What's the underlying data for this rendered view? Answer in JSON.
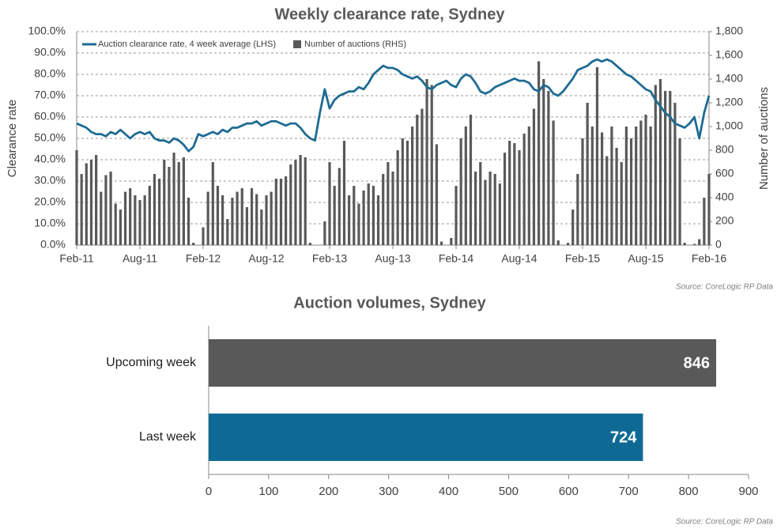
{
  "chart_data": [
    {
      "type": "combo",
      "title": "Weekly clearance rate, Sydney",
      "y_label": "Clearance rate",
      "y2_label": "Number of auctions",
      "source": "Source: CoreLogic  RP Data",
      "grid": true,
      "legend": "top",
      "categories": [
        "Feb-11",
        null,
        null,
        null,
        null,
        null,
        null,
        null,
        null,
        null,
        null,
        null,
        null,
        "Aug-11",
        null,
        null,
        null,
        null,
        null,
        null,
        null,
        null,
        null,
        null,
        null,
        null,
        "Feb-12",
        null,
        null,
        null,
        null,
        null,
        null,
        null,
        null,
        null,
        null,
        null,
        null,
        "Aug-12",
        null,
        null,
        null,
        null,
        null,
        null,
        null,
        null,
        null,
        null,
        null,
        null,
        "Feb-13",
        null,
        null,
        null,
        null,
        null,
        null,
        null,
        null,
        null,
        null,
        null,
        null,
        "Aug-13",
        null,
        null,
        null,
        null,
        null,
        null,
        null,
        null,
        null,
        null,
        null,
        null,
        "Feb-14",
        null,
        null,
        null,
        null,
        null,
        null,
        null,
        null,
        null,
        null,
        null,
        null,
        "Aug-14",
        null,
        null,
        null,
        null,
        null,
        null,
        null,
        null,
        null,
        null,
        null,
        null,
        "Feb-15",
        null,
        null,
        null,
        null,
        null,
        null,
        null,
        null,
        null,
        null,
        null,
        null,
        "Aug-15",
        null,
        null,
        null,
        null,
        null,
        null,
        null,
        null,
        null,
        null,
        null,
        null,
        "Feb-16"
      ],
      "series": [
        {
          "name": "Auction clearance rate, 4 week average (LHS)",
          "kind": "line",
          "color": "#1f6b93",
          "values": [
            57,
            56,
            55,
            53,
            52,
            52,
            51,
            53,
            52,
            54,
            52,
            50,
            52,
            53,
            52,
            53,
            50,
            49,
            49,
            48,
            50,
            49,
            47,
            44,
            46,
            52,
            51,
            52,
            53,
            52,
            54,
            53,
            55,
            55,
            56,
            57,
            57,
            58,
            56,
            57,
            58,
            58,
            57,
            56,
            57,
            57,
            55,
            52,
            50,
            49,
            62,
            73,
            64,
            68,
            70,
            71,
            72,
            72,
            74,
            73,
            76,
            80,
            82,
            84,
            83,
            83,
            82,
            80,
            79,
            78,
            79,
            77,
            74,
            73,
            75,
            76,
            77,
            75,
            74,
            78,
            80,
            79,
            76,
            72,
            71,
            72,
            74,
            75,
            76,
            77,
            78,
            77,
            77,
            76,
            73,
            72,
            75,
            74,
            71,
            70,
            72,
            75,
            78,
            82,
            83,
            84,
            86,
            87,
            86,
            87,
            86,
            84,
            82,
            80,
            79,
            77,
            75,
            73,
            72,
            68,
            65,
            62,
            60,
            57,
            56,
            55,
            57,
            60,
            50,
            62,
            70
          ]
        },
        {
          "name": "Number of auctions (RHS)",
          "kind": "bar",
          "axis": "y2",
          "color": "#595959",
          "values": [
            800,
            600,
            690,
            720,
            760,
            450,
            590,
            620,
            350,
            300,
            450,
            480,
            420,
            380,
            420,
            500,
            600,
            560,
            720,
            660,
            780,
            700,
            740,
            400,
            20,
            0,
            150,
            450,
            700,
            500,
            420,
            220,
            400,
            450,
            480,
            320,
            480,
            430,
            300,
            420,
            450,
            560,
            560,
            580,
            680,
            720,
            760,
            740,
            20,
            0,
            0,
            200,
            700,
            500,
            650,
            880,
            420,
            500,
            350,
            460,
            520,
            500,
            420,
            600,
            700,
            620,
            800,
            900,
            880,
            1000,
            1100,
            1150,
            1400,
            1350,
            850,
            30,
            0,
            60,
            500,
            900,
            1000,
            1100,
            620,
            700,
            550,
            620,
            600,
            520,
            780,
            880,
            860,
            800,
            940,
            1000,
            1150,
            1550,
            1400,
            1300,
            1050,
            40,
            0,
            20,
            300,
            600,
            900,
            1200,
            1000,
            1500,
            950,
            750,
            1000,
            820,
            700,
            1000,
            900,
            1000,
            1050,
            1100,
            1000,
            1350,
            1400,
            1300,
            1300,
            1200,
            900,
            20,
            0,
            10,
            50,
            400,
            600
          ]
        }
      ],
      "ylim": [
        0,
        100
      ],
      "yticks": [
        {
          "value": 0,
          "label": "0.0%"
        },
        {
          "value": 10,
          "label": "10.0%"
        },
        {
          "value": 20,
          "label": "20.0%"
        },
        {
          "value": 30,
          "label": "30.0%"
        },
        {
          "value": 40,
          "label": "40.0%"
        },
        {
          "value": 50,
          "label": "50.0%"
        },
        {
          "value": 60,
          "label": "60.0%"
        },
        {
          "value": 70,
          "label": "70.0%"
        },
        {
          "value": 80,
          "label": "80.0%"
        },
        {
          "value": 90,
          "label": "90.0%"
        },
        {
          "value": 100,
          "label": "100.0%"
        }
      ],
      "y2lim": [
        0,
        1800
      ],
      "y2ticks": [
        0,
        200,
        400,
        600,
        800,
        {
          "value": 1000,
          "label": "1,000"
        },
        {
          "value": 1200,
          "label": "1,200"
        },
        {
          "value": 1400,
          "label": "1,400"
        },
        {
          "value": 1600,
          "label": "1,600"
        },
        {
          "value": 1800,
          "label": "1,800"
        }
      ]
    },
    {
      "type": "hbar",
      "title": "Auction volumes, Sydney",
      "source": "Source: CoreLogic  RP Data",
      "categories": [
        "Upcoming week",
        "Last week"
      ],
      "values": [
        846,
        724
      ],
      "colors": [
        "#595959",
        "#0e6a94"
      ],
      "xlim": [
        0,
        900
      ],
      "xticks": [
        0,
        100,
        200,
        300,
        400,
        500,
        600,
        700,
        800,
        900
      ]
    }
  ]
}
